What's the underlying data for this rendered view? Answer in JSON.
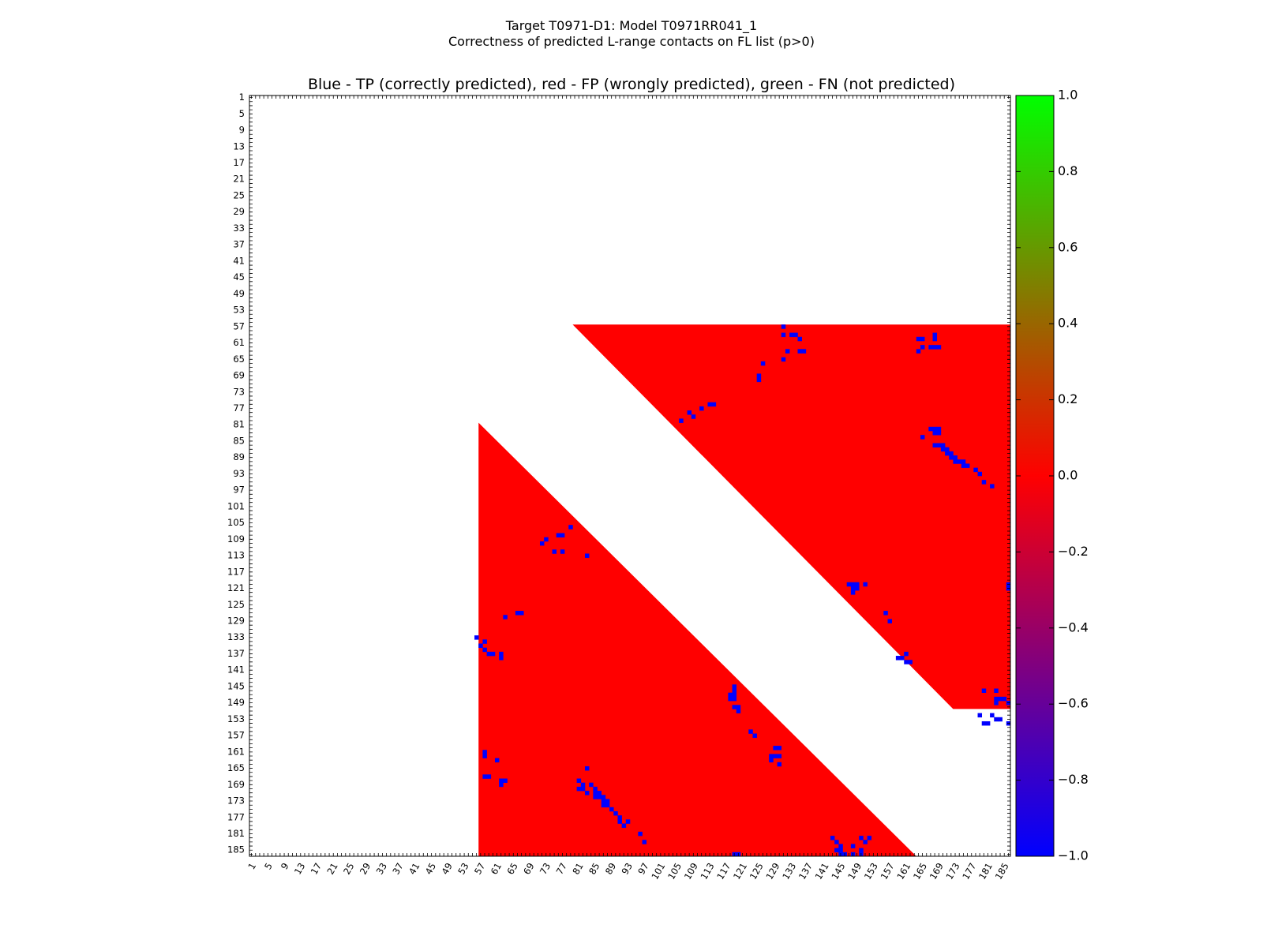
{
  "chart_data": {
    "type": "heatmap",
    "title_lines": [
      "Target T0971-D1: Model T0971RR041_1",
      "Correctness of predicted L-range contacts on FL list (p>0)"
    ],
    "subtitle": "Blue - TP (correctly predicted), red - FP (wrongly predicted), green - FN (not predicted)",
    "xlabel": "",
    "ylabel": "",
    "residue_range": [
      1,
      186
    ],
    "x_tick_labels": [
      "1",
      "5",
      "9",
      "13",
      "17",
      "21",
      "25",
      "29",
      "33",
      "37",
      "41",
      "45",
      "49",
      "53",
      "57",
      "61",
      "65",
      "69",
      "73",
      "77",
      "81",
      "85",
      "89",
      "93",
      "97",
      "101",
      "105",
      "109",
      "113",
      "117",
      "121",
      "125",
      "129",
      "133",
      "137",
      "141",
      "145",
      "149",
      "153",
      "157",
      "161",
      "165",
      "169",
      "173",
      "177",
      "181",
      "185"
    ],
    "y_tick_labels": [
      "1",
      "5",
      "9",
      "13",
      "17",
      "21",
      "25",
      "29",
      "33",
      "37",
      "41",
      "45",
      "49",
      "53",
      "57",
      "61",
      "65",
      "69",
      "73",
      "77",
      "81",
      "85",
      "89",
      "93",
      "97",
      "101",
      "105",
      "109",
      "113",
      "117",
      "121",
      "125",
      "129",
      "133",
      "137",
      "141",
      "145",
      "149",
      "153",
      "157",
      "161",
      "165",
      "169",
      "173",
      "177",
      "181",
      "185"
    ],
    "colorbar": {
      "range": [
        -1.0,
        1.0
      ],
      "tick_labels": [
        "1.0",
        "0.8",
        "0.6",
        "0.4",
        "0.2",
        "0.0",
        "−0.2",
        "−0.4",
        "−0.6",
        "−0.8",
        "−1.0"
      ],
      "colors": [
        "#0000ff",
        "#ff0000",
        "#00ff00"
      ]
    },
    "colors": {
      "tp": "#0000ff",
      "fp": "#ff0000",
      "fn": "#00ff00"
    },
    "regions": [
      {
        "name": "upper-triangle",
        "value": 0.0,
        "rows": [
          57,
          150
        ],
        "col_start_at_row_start": 80,
        "offset": 23,
        "col_end": 186
      },
      {
        "name": "lower-triangle",
        "value": 0.0,
        "cols": [
          57,
          163
        ],
        "row_start_at_col_start": 81,
        "offset": 24,
        "row_end": 186
      }
    ],
    "tp_cells": [
      [
        57,
        131
      ],
      [
        59,
        131
      ],
      [
        59,
        133
      ],
      [
        59,
        134
      ],
      [
        60,
        135
      ],
      [
        60,
        164
      ],
      [
        60,
        165
      ],
      [
        59,
        168
      ],
      [
        60,
        168
      ],
      [
        62,
        165
      ],
      [
        62,
        167
      ],
      [
        62,
        168
      ],
      [
        62,
        169
      ],
      [
        63,
        132
      ],
      [
        63,
        135
      ],
      [
        63,
        136
      ],
      [
        63,
        164
      ],
      [
        65,
        131
      ],
      [
        66,
        126
      ],
      [
        69,
        125
      ],
      [
        70,
        125
      ],
      [
        76,
        114
      ],
      [
        76,
        113
      ],
      [
        77,
        111
      ],
      [
        78,
        108
      ],
      [
        79,
        109
      ],
      [
        80,
        106
      ],
      [
        82,
        167
      ],
      [
        82,
        168
      ],
      [
        82,
        169
      ],
      [
        83,
        168
      ],
      [
        83,
        169
      ],
      [
        84,
        165
      ],
      [
        86,
        168
      ],
      [
        86,
        169
      ],
      [
        86,
        170
      ],
      [
        87,
        170
      ],
      [
        87,
        171
      ],
      [
        88,
        171
      ],
      [
        88,
        172
      ],
      [
        89,
        172
      ],
      [
        89,
        173
      ],
      [
        90,
        173
      ],
      [
        90,
        174
      ],
      [
        90,
        175
      ],
      [
        91,
        175
      ],
      [
        91,
        176
      ],
      [
        92,
        178
      ],
      [
        93,
        179
      ],
      [
        95,
        180
      ],
      [
        96,
        182
      ],
      [
        120,
        147
      ],
      [
        120,
        148
      ],
      [
        120,
        149
      ],
      [
        121,
        148
      ],
      [
        121,
        149
      ],
      [
        122,
        148
      ],
      [
        120,
        151
      ],
      [
        127,
        156
      ],
      [
        129,
        157
      ],
      [
        138,
        159
      ],
      [
        138,
        160
      ],
      [
        137,
        161
      ],
      [
        139,
        162
      ],
      [
        139,
        161
      ],
      [
        146,
        180
      ],
      [
        146,
        183
      ],
      [
        148,
        183
      ],
      [
        148,
        184
      ],
      [
        148,
        185
      ],
      [
        149,
        183
      ],
      [
        149,
        186
      ],
      [
        152,
        179
      ],
      [
        152,
        182
      ],
      [
        153,
        183
      ],
      [
        153,
        184
      ],
      [
        154,
        181
      ],
      [
        154,
        180
      ],
      [
        154,
        186
      ],
      [
        120,
        186
      ],
      [
        121,
        186
      ],
      [
        106,
        79
      ],
      [
        108,
        77
      ],
      [
        108,
        76
      ],
      [
        109,
        73
      ],
      [
        110,
        72
      ],
      [
        112,
        77
      ],
      [
        112,
        75
      ],
      [
        113,
        83
      ],
      [
        127,
        67
      ],
      [
        127,
        66
      ],
      [
        128,
        63
      ],
      [
        133,
        56
      ],
      [
        134,
        58
      ],
      [
        135,
        57
      ],
      [
        136,
        58
      ],
      [
        137,
        60
      ],
      [
        137,
        59
      ],
      [
        137,
        62
      ],
      [
        138,
        62
      ],
      [
        145,
        119
      ],
      [
        146,
        119
      ],
      [
        147,
        119
      ],
      [
        147,
        118
      ],
      [
        148,
        118
      ],
      [
        148,
        119
      ],
      [
        150,
        119
      ],
      [
        150,
        120
      ],
      [
        151,
        120
      ],
      [
        156,
        123
      ],
      [
        157,
        124
      ],
      [
        160,
        129
      ],
      [
        160,
        130
      ],
      [
        162,
        128
      ],
      [
        162,
        129
      ],
      [
        162,
        130
      ],
      [
        163,
        128
      ],
      [
        164,
        130
      ],
      [
        161,
        58
      ],
      [
        162,
        58
      ],
      [
        163,
        61
      ],
      [
        165,
        83
      ],
      [
        167,
        58
      ],
      [
        167,
        59
      ],
      [
        168,
        62
      ],
      [
        168,
        63
      ],
      [
        169,
        62
      ],
      [
        170,
        81
      ],
      [
        170,
        82
      ],
      [
        171,
        83
      ],
      [
        168,
        81
      ],
      [
        169,
        82
      ],
      [
        169,
        84
      ],
      [
        170,
        85
      ],
      [
        171,
        85
      ],
      [
        171,
        86
      ],
      [
        172,
        85
      ],
      [
        172,
        86
      ],
      [
        172,
        87
      ],
      [
        173,
        87
      ],
      [
        173,
        88
      ],
      [
        174,
        87
      ],
      [
        174,
        88
      ],
      [
        175,
        89
      ],
      [
        176,
        90
      ],
      [
        177,
        91
      ],
      [
        178,
        91
      ],
      [
        179,
        92
      ],
      [
        178,
        93
      ],
      [
        181,
        96
      ],
      [
        183,
        97
      ],
      [
        186,
        119
      ],
      [
        186,
        120
      ],
      [
        182,
        143
      ],
      [
        183,
        144
      ],
      [
        184,
        145
      ],
      [
        185,
        144
      ],
      [
        186,
        145
      ],
      [
        185,
        145
      ],
      [
        184,
        148
      ],
      [
        186,
        146
      ],
      [
        186,
        148
      ],
      [
        185,
        150
      ],
      [
        186,
        150
      ],
      [
        182,
        150
      ],
      [
        183,
        151
      ],
      [
        182,
        152
      ]
    ]
  }
}
